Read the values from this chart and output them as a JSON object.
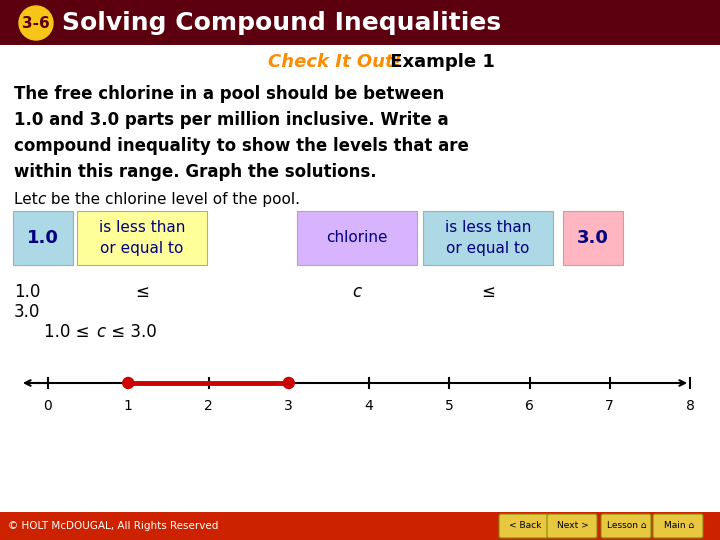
{
  "title_bg_color": "#5C0010",
  "title_text": "Solving Compound Inequalities",
  "title_badge": "3-6",
  "badge_bg": "#F5C518",
  "title_text_color": "#FFFFFF",
  "subtitle_orange": "Check It Out!",
  "subtitle_rest": " Example 1",
  "subtitle_orange_color": "#FF8C00",
  "subtitle_rest_color": "#000000",
  "body_bold_lines": [
    "The free chlorine in a pool should be between",
    "1.0 and 3.0 parts per million inclusive. Write a",
    "compound inequality to show the levels that are",
    "within this range. Graph the solutions."
  ],
  "box1_text": "1.0",
  "box1_color": "#ADD8E6",
  "box2_text": "is less than\nor equal to",
  "box2_color": "#FFFF99",
  "box3_text": "chlorine",
  "box3_color": "#D8B4FE",
  "box4_text": "is less than\nor equal to",
  "box4_color": "#ADD8E6",
  "box5_text": "3.0",
  "box5_color": "#FFB6C1",
  "number_line_min": 0,
  "number_line_max": 8,
  "dot1": 1.0,
  "dot2": 3.0,
  "dot_color": "#CC0000",
  "footer_bg": "#CC2200",
  "footer_text": "© HOLT McDOUGAL, All Rights Reserved",
  "footer_text_color": "#FFFFFF",
  "bg_color": "#FFFFFF",
  "text_color": "#000000",
  "box_text_color": "#000080"
}
